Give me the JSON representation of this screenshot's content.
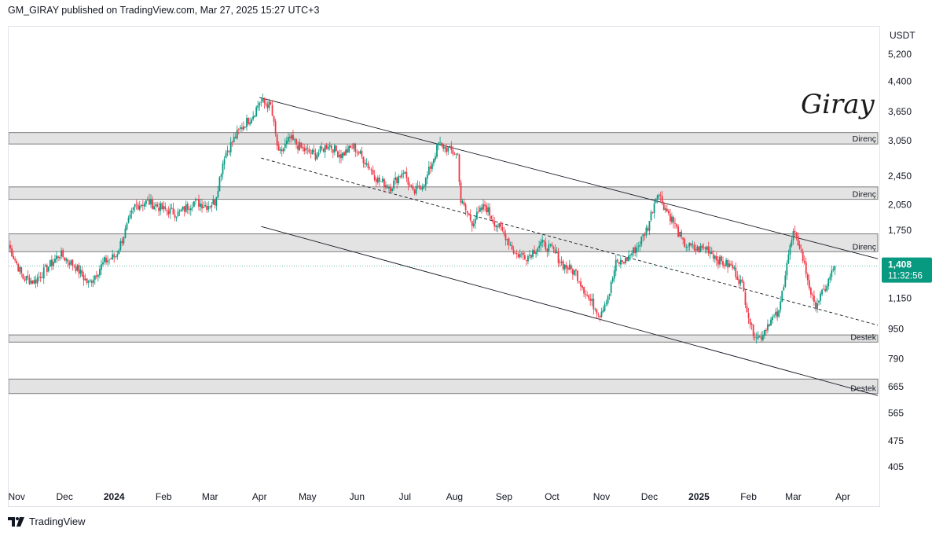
{
  "header": {
    "text": "GM_GIRAY published on TradingView.com, Mar 27, 2025 15:27 UTC+3"
  },
  "footer": {
    "brand": "TradingView"
  },
  "watermark": {
    "text": "Giray"
  },
  "colors": {
    "up": "#089981",
    "down": "#f23645",
    "zone_fill": "#e3e3e3",
    "line": "#131722",
    "last_price_bg": "#089981"
  },
  "chart_data": {
    "type": "candlestick",
    "y_scale": "log",
    "ylabel": "USDT",
    "ylim": [
      360,
      6200
    ],
    "price_ticks": [
      405,
      475,
      565,
      665,
      790,
      950,
      1150,
      1750,
      2050,
      2450,
      3050,
      3650,
      4400,
      5200
    ],
    "price_tick_labels": [
      "405",
      "475",
      "565",
      "665",
      "790",
      "950",
      "1,150",
      "1,750",
      "2,050",
      "2,450",
      "3,050",
      "3,650",
      "4,400",
      "5,200"
    ],
    "x_ticks": [
      {
        "label": "Nov",
        "date": "2023-11-01",
        "bold": false
      },
      {
        "label": "Dec",
        "date": "2023-12-01",
        "bold": false
      },
      {
        "label": "2024",
        "date": "2024-01-01",
        "bold": true
      },
      {
        "label": "Feb",
        "date": "2024-02-01",
        "bold": false
      },
      {
        "label": "Mar",
        "date": "2024-03-01",
        "bold": false
      },
      {
        "label": "Apr",
        "date": "2024-04-01",
        "bold": false
      },
      {
        "label": "May",
        "date": "2024-05-01",
        "bold": false
      },
      {
        "label": "Jun",
        "date": "2024-06-01",
        "bold": false
      },
      {
        "label": "Jul",
        "date": "2024-07-01",
        "bold": false
      },
      {
        "label": "Aug",
        "date": "2024-08-01",
        "bold": false
      },
      {
        "label": "Sep",
        "date": "2024-09-01",
        "bold": false
      },
      {
        "label": "Oct",
        "date": "2024-10-01",
        "bold": false
      },
      {
        "label": "Nov",
        "date": "2024-11-01",
        "bold": false
      },
      {
        "label": "Dec",
        "date": "2024-12-01",
        "bold": false
      },
      {
        "label": "2025",
        "date": "2025-01-01",
        "bold": true
      },
      {
        "label": "Feb",
        "date": "2025-02-01",
        "bold": false
      },
      {
        "label": "Mar",
        "date": "2025-03-01",
        "bold": false
      },
      {
        "label": "Apr",
        "date": "2025-04-01",
        "bold": false
      }
    ],
    "zones": [
      {
        "label": "Direnç",
        "low": 3000,
        "high": 3220
      },
      {
        "label": "Direnç",
        "low": 2130,
        "high": 2300
      },
      {
        "label": "Direnç",
        "low": 1540,
        "high": 1720
      },
      {
        "label": "Destek",
        "low": 880,
        "high": 920
      },
      {
        "label": "Destek",
        "low": 640,
        "high": 700
      }
    ],
    "lines": [
      {
        "name": "upper",
        "style": "solid",
        "points": [
          [
            "2024-04-01",
            4000
          ],
          [
            "2025-03-27",
            1580
          ]
        ]
      },
      {
        "name": "middle",
        "style": "dashed",
        "points": [
          [
            "2024-04-02",
            2750
          ],
          [
            "2025-03-27",
            1050
          ]
        ]
      },
      {
        "name": "lower",
        "style": "solid",
        "points": [
          [
            "2024-04-02",
            1800
          ],
          [
            "2025-03-27",
            680
          ]
        ]
      }
    ],
    "last_price": {
      "value": "1,408",
      "countdown": "11:32:56",
      "price": 1408
    },
    "path": [
      [
        "2023-10-27",
        1600
      ],
      [
        "2023-11-05",
        1310
      ],
      [
        "2023-11-12",
        1280
      ],
      [
        "2023-11-20",
        1390
      ],
      [
        "2023-11-28",
        1520
      ],
      [
        "2023-12-08",
        1400
      ],
      [
        "2023-12-16",
        1260
      ],
      [
        "2023-12-26",
        1450
      ],
      [
        "2024-01-02",
        1500
      ],
      [
        "2024-01-08",
        1750
      ],
      [
        "2024-01-14",
        2050
      ],
      [
        "2024-01-22",
        2100
      ],
      [
        "2024-02-01",
        2000
      ],
      [
        "2024-02-10",
        1950
      ],
      [
        "2024-02-20",
        2100
      ],
      [
        "2024-02-28",
        2050
      ],
      [
        "2024-03-04",
        2100
      ],
      [
        "2024-03-10",
        2800
      ],
      [
        "2024-03-20",
        3300
      ],
      [
        "2024-03-28",
        3600
      ],
      [
        "2024-04-01",
        3900
      ],
      [
        "2024-04-08",
        3800
      ],
      [
        "2024-04-13",
        2800
      ],
      [
        "2024-04-20",
        3100
      ],
      [
        "2024-04-28",
        2900
      ],
      [
        "2024-05-06",
        2800
      ],
      [
        "2024-05-14",
        3000
      ],
      [
        "2024-05-22",
        2800
      ],
      [
        "2024-05-30",
        2950
      ],
      [
        "2024-06-06",
        2700
      ],
      [
        "2024-06-14",
        2400
      ],
      [
        "2024-06-22",
        2300
      ],
      [
        "2024-06-30",
        2550
      ],
      [
        "2024-07-06",
        2200
      ],
      [
        "2024-07-14",
        2400
      ],
      [
        "2024-07-22",
        3000
      ],
      [
        "2024-07-28",
        2900
      ],
      [
        "2024-08-03",
        2800
      ],
      [
        "2024-08-05",
        2100
      ],
      [
        "2024-08-12",
        1850
      ],
      [
        "2024-08-20",
        2050
      ],
      [
        "2024-08-26",
        1850
      ],
      [
        "2024-09-02",
        1700
      ],
      [
        "2024-09-08",
        1520
      ],
      [
        "2024-09-16",
        1500
      ],
      [
        "2024-09-24",
        1620
      ],
      [
        "2024-10-01",
        1560
      ],
      [
        "2024-10-08",
        1420
      ],
      [
        "2024-10-16",
        1350
      ],
      [
        "2024-10-24",
        1150
      ],
      [
        "2024-10-31",
        1050
      ],
      [
        "2024-11-06",
        1200
      ],
      [
        "2024-11-10",
        1430
      ],
      [
        "2024-11-16",
        1460
      ],
      [
        "2024-11-24",
        1600
      ],
      [
        "2024-11-30",
        1800
      ],
      [
        "2024-12-06",
        2250
      ],
      [
        "2024-12-10",
        2050
      ],
      [
        "2024-12-16",
        1850
      ],
      [
        "2024-12-22",
        1620
      ],
      [
        "2024-12-30",
        1560
      ],
      [
        "2025-01-06",
        1580
      ],
      [
        "2025-01-14",
        1450
      ],
      [
        "2025-01-22",
        1400
      ],
      [
        "2025-01-28",
        1250
      ],
      [
        "2025-02-03",
        950
      ],
      [
        "2025-02-08",
        900
      ],
      [
        "2025-02-14",
        1000
      ],
      [
        "2025-02-20",
        1050
      ],
      [
        "2025-02-25",
        1450
      ],
      [
        "2025-03-01",
        1720
      ],
      [
        "2025-03-05",
        1600
      ],
      [
        "2025-03-10",
        1300
      ],
      [
        "2025-03-14",
        1100
      ],
      [
        "2025-03-20",
        1200
      ],
      [
        "2025-03-27",
        1408
      ]
    ]
  }
}
